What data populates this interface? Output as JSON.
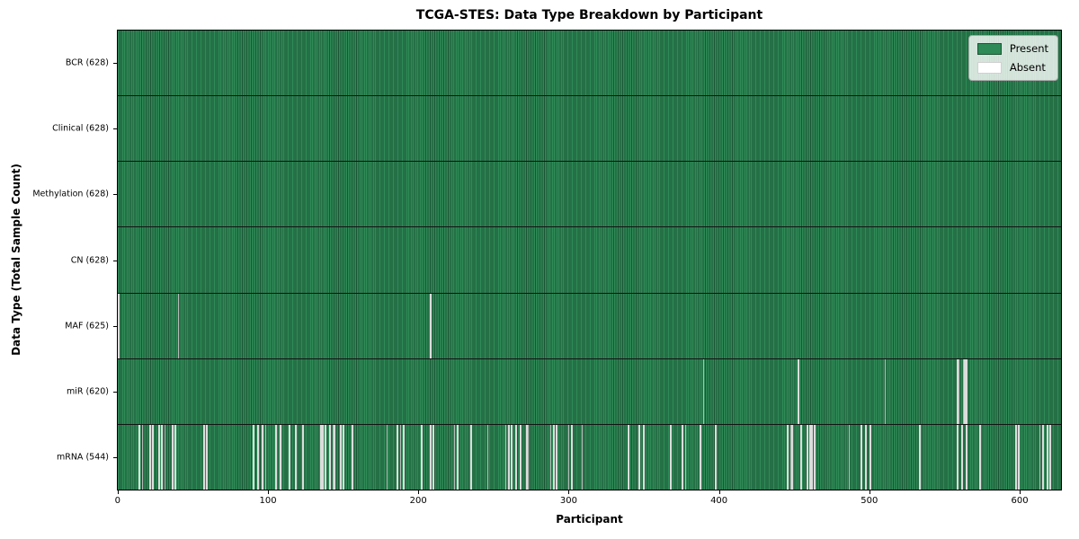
{
  "title": "TCGA-STES: Data Type Breakdown by Participant",
  "colors": {
    "present": "#2E8B57",
    "present_edge": "#1C5434",
    "absent": "#FFFFFF",
    "absent_edge": "#BBBBBB",
    "row_divider": "#131313",
    "spine": "#000000",
    "legend_bg": "rgba(255,255,255,0.8)",
    "legend_border": "#A8A8A8"
  },
  "chart_data": {
    "type": "heatmap",
    "title": "TCGA-STES: Data Type Breakdown by Participant",
    "xlabel": "Participant",
    "ylabel": "Data Type (Total Sample Count)",
    "x_ticks": [
      0,
      100,
      200,
      300,
      400,
      500,
      600
    ],
    "xlim": [
      -0.5,
      628.1
    ],
    "n_participants": 628,
    "grid": false,
    "legend": {
      "position": "upper right",
      "items": [
        {
          "label": "Present",
          "color": "#2E8B57"
        },
        {
          "label": "Absent",
          "color": "#FFFFFF"
        }
      ]
    },
    "rows": [
      {
        "data_type": "BCR",
        "label": "BCR (628)",
        "present_count": 628,
        "absent_count": 0,
        "absent_participants": []
      },
      {
        "data_type": "Clinical",
        "label": "Clinical (628)",
        "present_count": 628,
        "absent_count": 0,
        "absent_participants": []
      },
      {
        "data_type": "Methylation",
        "label": "Methylation (628)",
        "present_count": 628,
        "absent_count": 0,
        "absent_participants": []
      },
      {
        "data_type": "CN",
        "label": "CN (628)",
        "present_count": 628,
        "absent_count": 0,
        "absent_participants": []
      },
      {
        "data_type": "MAF",
        "label": "MAF (625)",
        "present_count": 625,
        "absent_count": 3,
        "absent_participants": [
          0,
          40,
          208
        ]
      },
      {
        "data_type": "miR",
        "label": "miR (620)",
        "present_count": 620,
        "absent_count": 8,
        "absent_participants": [
          390,
          453,
          511,
          559,
          560,
          563,
          564,
          565
        ]
      },
      {
        "data_type": "mRNA",
        "label": "mRNA (544)",
        "present_count": 544,
        "absent_count": 84,
        "absent_participants": [
          14,
          16,
          21,
          23,
          27,
          29,
          31,
          36,
          38,
          57,
          59,
          90,
          93,
          96,
          98,
          105,
          108,
          114,
          118,
          123,
          135,
          136,
          138,
          141,
          143,
          144,
          148,
          150,
          156,
          179,
          186,
          188,
          190,
          202,
          208,
          210,
          224,
          226,
          235,
          246,
          258,
          260,
          262,
          265,
          268,
          272,
          273,
          288,
          290,
          292,
          300,
          302,
          309,
          340,
          347,
          350,
          368,
          376,
          378,
          388,
          398,
          446,
          448,
          449,
          455,
          459,
          461,
          462,
          464,
          487,
          495,
          498,
          501,
          534,
          559,
          562,
          565,
          574,
          598,
          600,
          614,
          616,
          619,
          621
        ]
      }
    ]
  }
}
